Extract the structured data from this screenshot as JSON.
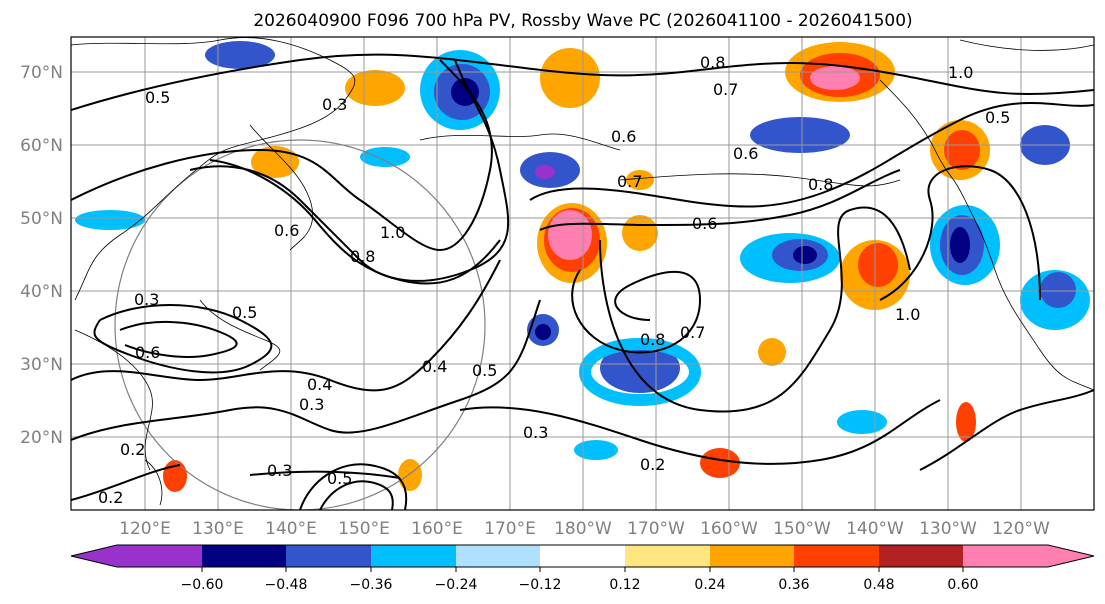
{
  "title": "2026040900 F096 700 hPa PV, Rossby Wave PC (2026041100 - 2026041500)",
  "map": {
    "lat_labels": [
      "70°N",
      "60°N",
      "50°N",
      "40°N",
      "30°N",
      "20°N"
    ],
    "lon_labels": [
      "120°E",
      "130°E",
      "140°E",
      "150°E",
      "160°E",
      "170°E",
      "180°W",
      "170°W",
      "160°W",
      "150°W",
      "140°W",
      "130°W",
      "120°W"
    ],
    "contour_labels": [
      "0.5",
      "0.8",
      "0.7",
      "1.0",
      "0.5",
      "0.6",
      "0.6",
      "0.7",
      "0.8",
      "0.6",
      "0.6",
      "0.8",
      "1.0",
      "0.4",
      "0.5",
      "0.3",
      "0.8",
      "0.7",
      "1.0",
      "0.2",
      "0.3",
      "0.5",
      "0.3",
      "0.4",
      "0.3",
      "0.2",
      "0.5",
      "0.2",
      "0.3",
      "0.6"
    ],
    "shading_colors": {
      "strong_positive": "#ff80b0",
      "positive_3": "#b22222",
      "positive_2": "#ff4000",
      "positive_1": "#ffa500",
      "weak_positive": "#ffe680",
      "weak_negative": "#b0e0ff",
      "negative_1": "#00bfff",
      "negative_2": "#3355cc",
      "negative_3": "#000080",
      "strong_negative": "#9932cc"
    }
  },
  "colorbar": {
    "colors": [
      "#9932cc",
      "#000080",
      "#3355cc",
      "#00bfff",
      "#b0e0ff",
      "#ffffff",
      "#ffe680",
      "#ffa500",
      "#ff4000",
      "#b22222",
      "#ff80b0"
    ],
    "ticks": [
      "−0.60",
      "−0.48",
      "−0.36",
      "−0.24",
      "−0.12",
      "0.12",
      "0.24",
      "0.36",
      "0.48",
      "0.60"
    ]
  }
}
